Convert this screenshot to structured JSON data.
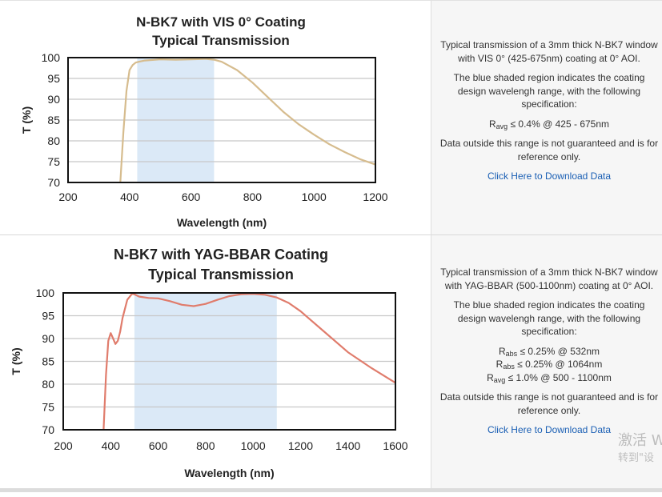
{
  "charts": [
    {
      "chart_data": {
        "type": "line",
        "title": "N-BK7 with VIS 0° Coating",
        "subtitle": "Typical Transmission",
        "xlabel": "Wavelength (nm)",
        "ylabel": "T (%)",
        "xlim": [
          200,
          1200
        ],
        "ylim": [
          70,
          100
        ],
        "xticks": [
          200,
          400,
          600,
          800,
          1000,
          1200
        ],
        "yticks": [
          70,
          75,
          80,
          85,
          90,
          95,
          100
        ],
        "shaded_range": [
          425,
          675
        ],
        "grid": true,
        "line_color": "#d6bc8e",
        "shade_color": "#dbe9f7",
        "x": [
          370,
          380,
          390,
          400,
          410,
          420,
          430,
          450,
          500,
          550,
          600,
          650,
          675,
          700,
          750,
          800,
          850,
          900,
          950,
          1000,
          1050,
          1100,
          1150,
          1200
        ],
        "y": [
          70,
          82,
          92,
          97,
          98.2,
          98.8,
          99.0,
          99.3,
          99.6,
          99.5,
          99.6,
          99.7,
          99.5,
          99.0,
          97.0,
          94.0,
          90.5,
          87.0,
          84.0,
          81.5,
          79.2,
          77.3,
          75.6,
          74.3
        ]
      },
      "description": {
        "intro": "Typical transmission of a 3mm thick N-BK7 window with VIS 0° (425-675nm) coating at 0° AOI.",
        "spec_intro": "The blue shaded region indicates the coating design wavelengh range, with the following specification:",
        "specs": [
          {
            "sym": "R",
            "sub": "avg",
            "text": " ≤ 0.4% @ 425 - 675nm"
          }
        ],
        "disclaimer": "Data outside this range is not guaranteed and is for reference only.",
        "link": "Click Here to Download Data"
      }
    },
    {
      "chart_data": {
        "type": "line",
        "title": "N-BK7 with YAG-BBAR Coating",
        "subtitle": "Typical Transmission",
        "xlabel": "Wavelength (nm)",
        "ylabel": "T (%)",
        "xlim": [
          200,
          1600
        ],
        "ylim": [
          70,
          100
        ],
        "xticks": [
          200,
          400,
          600,
          800,
          1000,
          1200,
          1400,
          1600
        ],
        "yticks": [
          70,
          75,
          80,
          85,
          90,
          95,
          100
        ],
        "shaded_range": [
          500,
          1100
        ],
        "grid": true,
        "line_color": "#e07c6c",
        "shade_color": "#dbe9f7",
        "x": [
          370,
          380,
          390,
          400,
          410,
          420,
          430,
          440,
          450,
          470,
          490,
          500,
          520,
          560,
          600,
          650,
          700,
          750,
          800,
          850,
          900,
          950,
          1000,
          1050,
          1100,
          1150,
          1200,
          1300,
          1400,
          1500,
          1600
        ],
        "y": [
          70,
          82,
          89.5,
          91.2,
          90.0,
          88.8,
          89.5,
          91.5,
          94.5,
          98.5,
          99.8,
          99.7,
          99.2,
          98.9,
          98.8,
          98.2,
          97.4,
          97.1,
          97.6,
          98.5,
          99.3,
          99.7,
          99.8,
          99.6,
          99.0,
          97.8,
          96.0,
          91.5,
          87.0,
          83.5,
          80.3
        ]
      },
      "description": {
        "intro": "Typical transmission of a 3mm thick N-BK7 window with YAG-BBAR (500-1100nm) coating at 0° AOI.",
        "spec_intro": "The blue shaded region indicates the coating design wavelengh range, with the following specification:",
        "specs": [
          {
            "sym": "R",
            "sub": "abs",
            "text": " ≤ 0.25% @ 532nm"
          },
          {
            "sym": "R",
            "sub": "abs",
            "text": " ≤ 0.25% @ 1064nm"
          },
          {
            "sym": "R",
            "sub": "avg",
            "text": " ≤ 1.0% @ 500 - 1100nm"
          }
        ],
        "disclaimer": "Data outside this range is not guaranteed and is for reference only.",
        "link": "Click Here to Download Data"
      }
    }
  ],
  "watermark": {
    "line1": "激活 W",
    "line2": "转到\"设"
  }
}
